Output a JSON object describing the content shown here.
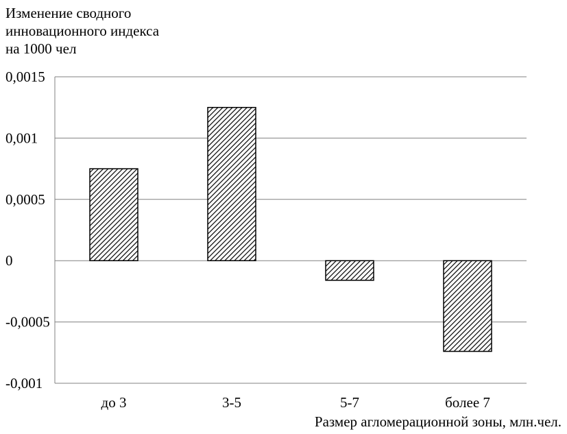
{
  "chart_data": {
    "type": "bar",
    "ylabel_lines": [
      "Изменение сводного",
      "инновационного индекса",
      "на 1000 чел"
    ],
    "xlabel": "Размер агломерационной зоны, млн.чел.",
    "categories": [
      "до 3",
      "3-5",
      "5-7",
      "более 7"
    ],
    "values": [
      0.00075,
      0.00125,
      -0.00016,
      -0.00074
    ],
    "ylim": [
      -0.001,
      0.0015
    ],
    "yticks": [
      0.0015,
      0.001,
      0.0005,
      0,
      -0.0005,
      -0.001
    ],
    "ytick_labels": [
      "0,0015",
      "0,001",
      "0,0005",
      "0",
      "-0,0005",
      "-0,001"
    ],
    "grid": true,
    "legend": "none",
    "bar_fill": "diagonal-hatch",
    "colors": {
      "hatch": "#000000",
      "background": "#ffffff",
      "grid": "#808080"
    }
  }
}
